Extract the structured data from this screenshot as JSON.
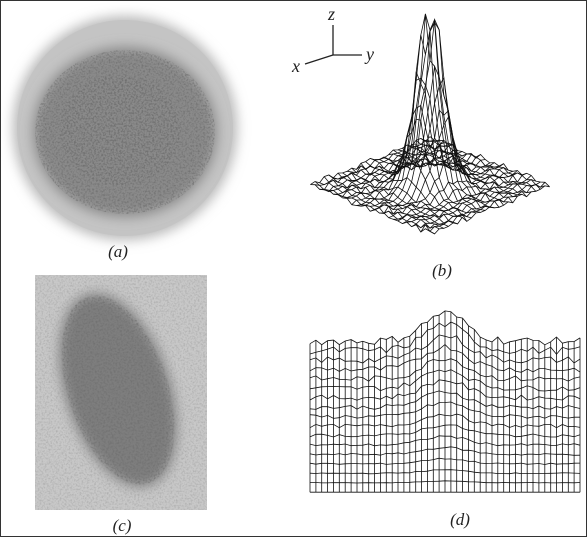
{
  "axes_icon": {
    "z": "z",
    "x": "x",
    "y": "y"
  },
  "panels": [
    {
      "label": "(a)"
    },
    {
      "label": "(b)"
    },
    {
      "label": "(c)"
    },
    {
      "label": "(d)"
    }
  ]
}
